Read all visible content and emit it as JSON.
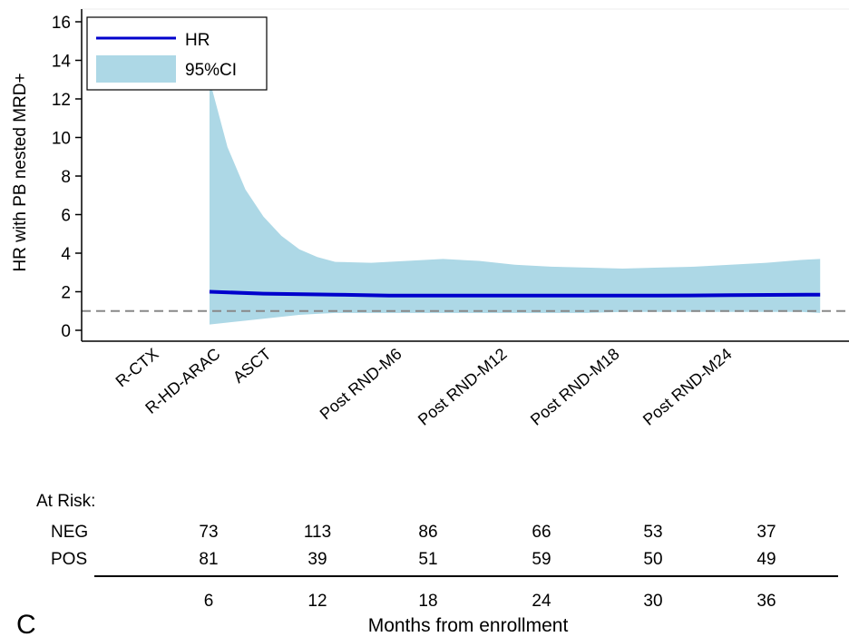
{
  "panel_label": "C",
  "chart_data": {
    "type": "line",
    "ylabel": "HR with PB nested MRD+",
    "xlabel": "Months from enrollment",
    "ylim": [
      0,
      16
    ],
    "yticks": [
      0,
      2,
      4,
      6,
      8,
      10,
      12,
      14,
      16
    ],
    "xlim": [
      0,
      40
    ],
    "xticks": [
      6,
      12,
      18,
      24,
      30,
      36
    ],
    "reference_line": {
      "y": 1,
      "style": "dashed"
    },
    "legend": {
      "placement": "top-left",
      "entries": [
        "HR",
        "95%CI"
      ]
    },
    "series": [
      {
        "name": "HR",
        "color": "#0000cc",
        "x": [
          5,
          8,
          12,
          15,
          20,
          25,
          30,
          34,
          39
        ],
        "y": [
          2.0,
          1.9,
          1.85,
          1.8,
          1.8,
          1.8,
          1.8,
          1.82,
          1.85
        ]
      },
      {
        "name": "95%CI",
        "color": "#add8e6",
        "x": [
          5,
          6,
          7,
          8,
          9,
          10,
          11,
          12,
          14,
          16,
          18,
          20,
          22,
          24,
          26,
          28,
          30,
          32,
          34,
          36,
          38,
          39
        ],
        "lower": [
          0.3,
          0.4,
          0.5,
          0.6,
          0.7,
          0.8,
          0.85,
          0.9,
          0.9,
          0.9,
          0.9,
          0.9,
          0.9,
          0.9,
          0.9,
          0.95,
          0.95,
          0.95,
          0.95,
          0.95,
          0.95,
          0.9
        ],
        "upper": [
          13.0,
          9.5,
          7.3,
          5.9,
          4.9,
          4.2,
          3.8,
          3.55,
          3.5,
          3.6,
          3.7,
          3.6,
          3.4,
          3.3,
          3.25,
          3.2,
          3.25,
          3.3,
          3.4,
          3.5,
          3.65,
          3.7
        ]
      }
    ],
    "phase_labels": [
      "R-CTX",
      "R-HD-ARAC",
      "ASCT",
      "Post RND-M6",
      "Post RND-M12",
      "Post RND-M18",
      "Post RND-M24"
    ],
    "phase_positions": [
      2.5,
      5,
      8,
      14,
      20.5,
      26.5,
      32.5
    ]
  },
  "at_risk": {
    "title": "At Risk:",
    "rows": [
      {
        "label": "NEG",
        "values": [
          "73",
          "113",
          "86",
          "66",
          "53",
          "37"
        ]
      },
      {
        "label": "POS",
        "values": [
          "81",
          "39",
          "51",
          "59",
          "50",
          "49"
        ]
      }
    ],
    "times": [
      "6",
      "12",
      "18",
      "24",
      "30",
      "36"
    ]
  }
}
